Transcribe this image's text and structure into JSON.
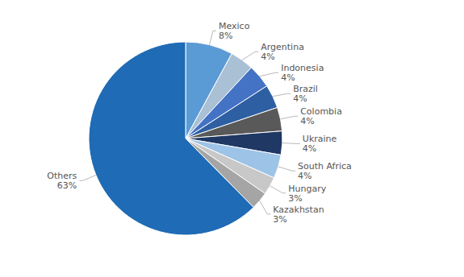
{
  "chart_data": {
    "type": "pie",
    "categories": [
      "Mexico",
      "Argentina",
      "Indonesia",
      "Brazil",
      "Colombia",
      "Ukraine",
      "South Africa",
      "Hungary",
      "Kazakhstan",
      "Others"
    ],
    "values": [
      8,
      4,
      4,
      4,
      4,
      4,
      4,
      3,
      3,
      63
    ],
    "value_labels": [
      "8%",
      "4%",
      "4%",
      "4%",
      "4%",
      "4%",
      "4%",
      "3%",
      "3%",
      "63%"
    ],
    "colors": [
      "#5B9BD5",
      "#A9C0D5",
      "#4472C4",
      "#2E5FA3",
      "#595959",
      "#1F3864",
      "#9DC3E6",
      "#C8C8C8",
      "#A5A5A5",
      "#1F6BB5"
    ],
    "data_labels": true
  }
}
